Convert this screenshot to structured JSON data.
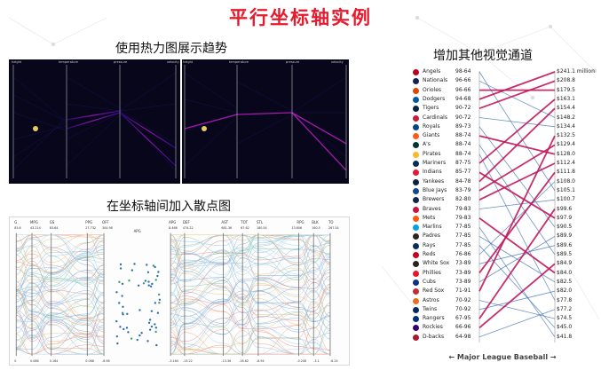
{
  "page": {
    "title": "平行坐标轴实例"
  },
  "sections": {
    "heatmap_title": "使用热力图展示趋势",
    "scatter_title": "在坐标轴间加入散点图",
    "visual_title": "增加其他视觉通道"
  },
  "heatmap_axes": [
    "height",
    "temperature",
    "pressure",
    "velocity"
  ],
  "scatter_axes": {
    "left": [
      "G",
      "MPG",
      "GS",
      "PPG",
      "OFF"
    ],
    "middle_label": "APG",
    "right": [
      "APG",
      "DEF",
      "AST",
      "TOT",
      "STL",
      "RPG",
      "BLK",
      "TO"
    ],
    "left_top_values": [
      "83.6",
      "43.214",
      "83.64",
      "27.732",
      "304.98"
    ],
    "left_bottom_values": [
      "0",
      "0.086",
      "0.164",
      "0.068",
      "-8.98"
    ],
    "right_top_values": [
      "8.466",
      "474.22",
      "681.36",
      "67.62",
      "180.54",
      "13.606",
      "160.5",
      "267.54"
    ],
    "right_bottom_values": [
      "-3.164",
      "-13.22",
      "-13.36",
      "-16.62",
      "-8.94",
      "-0.208",
      "-3.1",
      "-6.24"
    ]
  },
  "mlb": {
    "footer": "← Major League Baseball →",
    "teams": [
      {
        "name": "Angels",
        "record": "98-64",
        "color": "#ba0021"
      },
      {
        "name": "Nationals",
        "record": "96-66",
        "color": "#14225a"
      },
      {
        "name": "Orioles",
        "record": "96-66",
        "color": "#df4601"
      },
      {
        "name": "Dodgers",
        "record": "94-68",
        "color": "#005a9c"
      },
      {
        "name": "Tigers",
        "record": "90-72",
        "color": "#0c2340"
      },
      {
        "name": "Cardinals",
        "record": "90-72",
        "color": "#c41e3a"
      },
      {
        "name": "Royals",
        "record": "89-73",
        "color": "#004687"
      },
      {
        "name": "Giants",
        "record": "88-74",
        "color": "#fd5a1e"
      },
      {
        "name": "A's",
        "record": "88-74",
        "color": "#003831"
      },
      {
        "name": "Pirates",
        "record": "88-74",
        "color": "#fdb827"
      },
      {
        "name": "Mariners",
        "record": "87-75",
        "color": "#0c2c56"
      },
      {
        "name": "Indians",
        "record": "85-77",
        "color": "#e31937"
      },
      {
        "name": "Yankees",
        "record": "84-78",
        "color": "#0c2340"
      },
      {
        "name": "Blue Jays",
        "record": "83-79",
        "color": "#134a8e"
      },
      {
        "name": "Brewers",
        "record": "82-80",
        "color": "#12284b"
      },
      {
        "name": "Braves",
        "record": "79-83",
        "color": "#ce1141"
      },
      {
        "name": "Mets",
        "record": "79-83",
        "color": "#ff5910"
      },
      {
        "name": "Marlins",
        "record": "77-85",
        "color": "#00a3e0"
      },
      {
        "name": "Padres",
        "record": "77-85",
        "color": "#2f241d"
      },
      {
        "name": "Rays",
        "record": "77-85",
        "color": "#092c5c"
      },
      {
        "name": "Reds",
        "record": "76-86",
        "color": "#c6011f"
      },
      {
        "name": "White Sox",
        "record": "73-89",
        "color": "#27251f"
      },
      {
        "name": "Phillies",
        "record": "73-89",
        "color": "#e81828"
      },
      {
        "name": "Cubs",
        "record": "73-89",
        "color": "#0e3386"
      },
      {
        "name": "Red Sox",
        "record": "71-91",
        "color": "#bd3039"
      },
      {
        "name": "Astros",
        "record": "70-92",
        "color": "#eb6e1f"
      },
      {
        "name": "Twins",
        "record": "70-92",
        "color": "#002b5c"
      },
      {
        "name": "Rangers",
        "record": "67-95",
        "color": "#003278"
      },
      {
        "name": "Rockies",
        "record": "66-96",
        "color": "#33006f"
      },
      {
        "name": "D-backs",
        "record": "64-98",
        "color": "#a71930"
      }
    ],
    "payrolls": [
      "$241.1 million",
      "$208.8",
      "$179.5",
      "$163.1",
      "$154.4",
      "$148.2",
      "$134.4",
      "$132.5",
      "$129.4",
      "$128.0",
      "$112.4",
      "$111.8",
      "$108.0",
      "$105.1",
      "$100.7",
      "$99.6",
      "$97.9",
      "$90.5",
      "$89.9",
      "$89.6",
      "$89.5",
      "$84.9",
      "$84.0",
      "$82.5",
      "$82.0",
      "$77.8",
      "$77.2",
      "$74.5",
      "$45.0",
      "$41.8"
    ],
    "links": [
      {
        "team": 0,
        "pay": 13,
        "hi": false
      },
      {
        "team": 1,
        "pay": 5,
        "hi": false
      },
      {
        "team": 2,
        "pay": 2,
        "hi": true
      },
      {
        "team": 3,
        "pay": 0,
        "hi": true
      },
      {
        "team": 4,
        "pay": 1,
        "hi": true
      },
      {
        "team": 5,
        "pay": 6,
        "hi": false
      },
      {
        "team": 6,
        "pay": 17,
        "hi": false
      },
      {
        "team": 7,
        "pay": 9,
        "hi": true
      },
      {
        "team": 8,
        "pay": 20,
        "hi": false
      },
      {
        "team": 9,
        "pay": 25,
        "hi": false
      },
      {
        "team": 10,
        "pay": 3,
        "hi": true
      },
      {
        "team": 11,
        "pay": 16,
        "hi": true
      },
      {
        "team": 12,
        "pay": 4,
        "hi": true
      },
      {
        "team": 13,
        "pay": 8,
        "hi": true
      },
      {
        "team": 14,
        "pay": 10,
        "hi": true
      },
      {
        "team": 15,
        "pay": 14,
        "hi": false
      },
      {
        "team": 16,
        "pay": 22,
        "hi": true
      },
      {
        "team": 17,
        "pay": 29,
        "hi": false
      },
      {
        "team": 18,
        "pay": 23,
        "hi": false
      },
      {
        "team": 19,
        "pay": 28,
        "hi": false
      },
      {
        "team": 20,
        "pay": 12,
        "hi": false
      },
      {
        "team": 21,
        "pay": 19,
        "hi": false
      },
      {
        "team": 22,
        "pay": 11,
        "hi": true
      },
      {
        "team": 23,
        "pay": 18,
        "hi": false
      },
      {
        "team": 24,
        "pay": 7,
        "hi": true
      },
      {
        "team": 25,
        "pay": 27,
        "hi": false
      },
      {
        "team": 26,
        "pay": 24,
        "hi": false
      },
      {
        "team": 27,
        "pay": 15,
        "hi": true
      },
      {
        "team": 28,
        "pay": 21,
        "hi": true
      },
      {
        "team": 29,
        "pay": 26,
        "hi": false
      }
    ]
  }
}
